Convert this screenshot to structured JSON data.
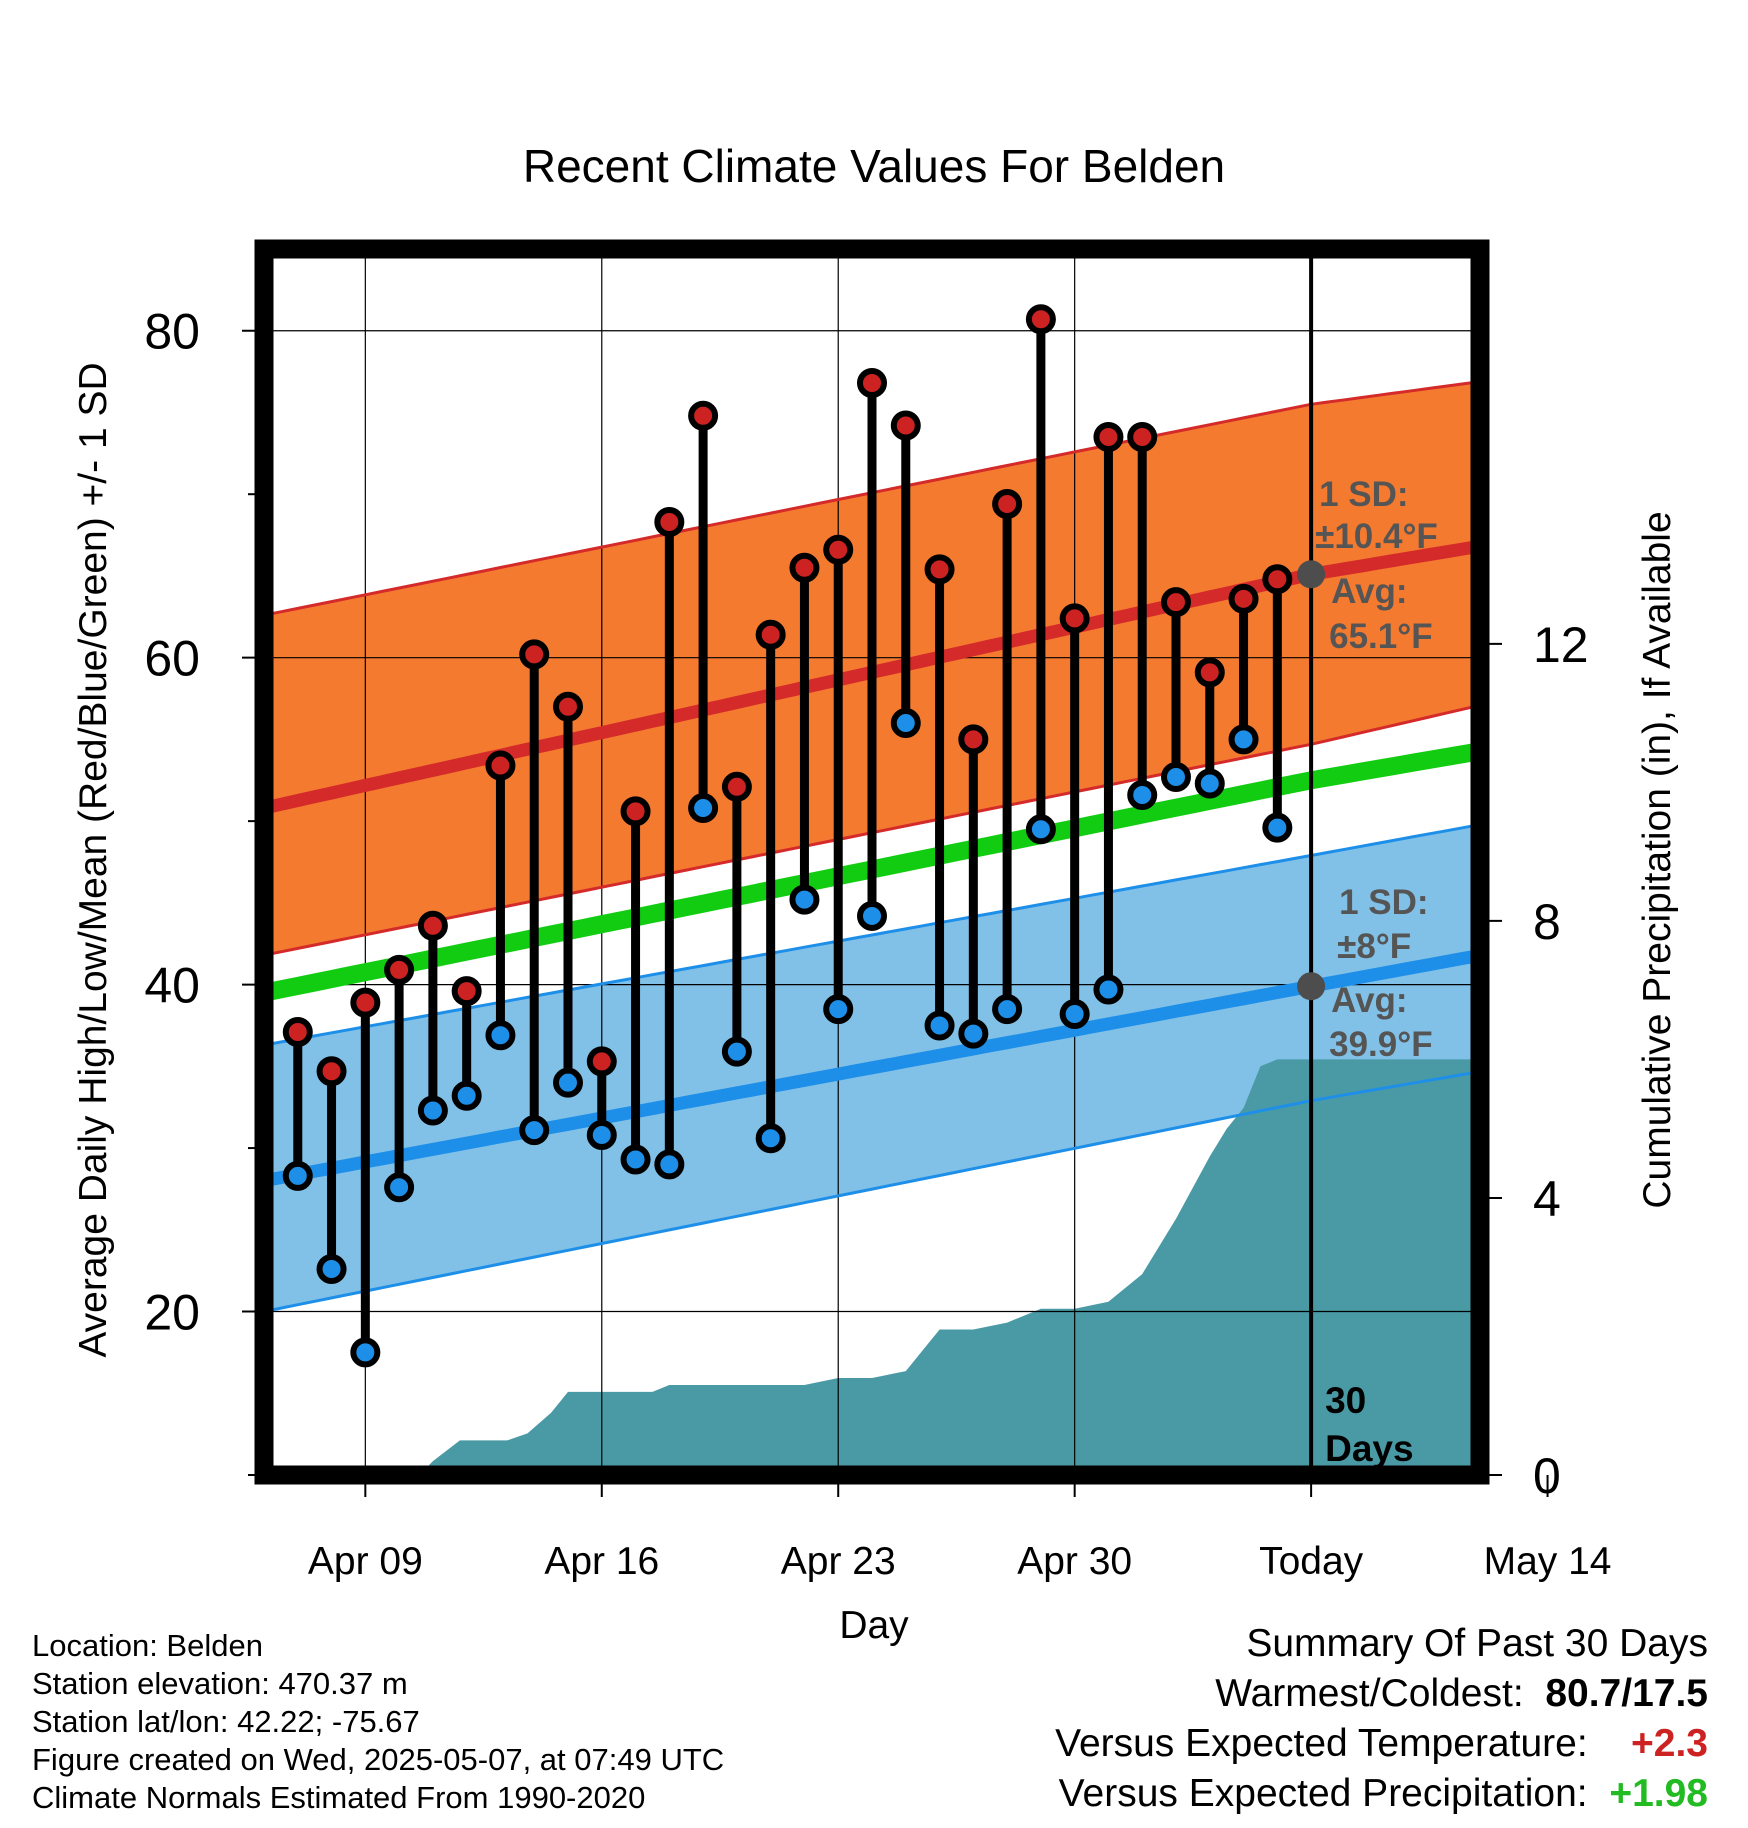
{
  "chart_data": {
    "type": "line",
    "title": "Recent Climate Values For Belden",
    "xlabel": "Day",
    "ylabel": "Average Daily High/Low/Mean (Red/Blue/Green) +/- 1 SD",
    "y2label": "Cumulative Precipitation (in), If Available",
    "xlim": [
      0,
      36
    ],
    "ylim": [
      10,
      85
    ],
    "y2lim": [
      0,
      17.7
    ],
    "x_ticks": [
      {
        "x": 3,
        "label": "Apr 09"
      },
      {
        "x": 10,
        "label": "Apr 16"
      },
      {
        "x": 17,
        "label": "Apr 23"
      },
      {
        "x": 24,
        "label": "Apr 30"
      },
      {
        "x": 31,
        "label": "Today"
      },
      {
        "x": 38,
        "label": "May 14"
      }
    ],
    "y_ticks": [
      20,
      40,
      60,
      80
    ],
    "y_minor_ticks": [
      10,
      30,
      50,
      70
    ],
    "y2_ticks": [
      0,
      4,
      8,
      12
    ],
    "grid": true,
    "today_x": 31,
    "today_label": [
      "30",
      "Days"
    ],
    "normals": {
      "x": [
        0,
        31,
        40
      ],
      "high_mean": [
        50.8,
        65.1,
        68.2
      ],
      "high_upper": [
        62.6,
        75.5,
        78.0
      ],
      "high_lower": [
        41.8,
        54.7,
        59.0
      ],
      "low_mean": [
        28.0,
        39.9,
        43.3
      ],
      "low_upper": [
        36.3,
        47.9,
        51.3
      ],
      "low_lower": [
        20.0,
        32.9,
        36.1
      ],
      "mean": [
        39.5,
        52.5,
        55.7
      ]
    },
    "high_annotation": {
      "sd_label": "1 SD:",
      "sd_value": "±10.4°F",
      "avg_label": "Avg:",
      "avg_value": "65.1°F",
      "avg": 65.1
    },
    "low_annotation": {
      "sd_label": "1 SD:",
      "sd_value": "±8°F",
      "avg_label": "Avg:",
      "avg_value": "39.9°F",
      "avg": 39.9
    },
    "series": [
      {
        "name": "High",
        "color": "#cc2222",
        "x": [
          1,
          2,
          3,
          4,
          5,
          6,
          7,
          8,
          9,
          10,
          11,
          12,
          13,
          14,
          15,
          16,
          17,
          18,
          19,
          20,
          21,
          22,
          23,
          24,
          25,
          26,
          27,
          28,
          29,
          30
        ],
        "values": [
          37.1,
          34.7,
          38.9,
          40.9,
          43.6,
          39.6,
          53.4,
          60.2,
          57.0,
          35.3,
          50.6,
          68.3,
          74.8,
          52.1,
          61.4,
          65.5,
          66.6,
          76.8,
          74.2,
          65.4,
          55.0,
          69.4,
          80.7,
          62.4,
          73.5,
          73.5,
          63.4,
          59.1,
          63.6,
          64.8
        ]
      },
      {
        "name": "Low",
        "color": "#1e8fe8",
        "x": [
          1,
          2,
          3,
          4,
          5,
          6,
          7,
          8,
          9,
          10,
          11,
          12,
          13,
          14,
          15,
          16,
          17,
          18,
          19,
          20,
          21,
          22,
          23,
          24,
          25,
          26,
          27,
          28,
          29,
          30
        ],
        "values": [
          28.3,
          22.6,
          17.5,
          27.6,
          32.3,
          33.2,
          36.9,
          31.1,
          34.0,
          30.8,
          29.3,
          29.0,
          50.8,
          35.9,
          30.6,
          45.2,
          38.5,
          44.2,
          56.0,
          37.5,
          37.0,
          38.5,
          49.5,
          38.2,
          39.7,
          51.6,
          52.7,
          52.3,
          55.0,
          49.6
        ]
      }
    ],
    "precip": {
      "x": [
        0,
        3,
        3.8,
        4.8,
        5,
        5.8,
        6,
        7.2,
        7.8,
        8.5,
        9,
        9.5,
        10,
        11.5,
        12,
        13,
        14,
        15,
        16,
        17,
        18,
        19,
        20,
        21,
        22,
        23,
        24,
        25,
        26,
        27,
        28,
        28.5,
        29,
        29.5,
        30,
        30.5,
        36
      ],
      "values": [
        0,
        0,
        0.1,
        0.1,
        0.2,
        0.5,
        0.5,
        0.5,
        0.6,
        0.9,
        1.2,
        1.2,
        1.2,
        1.2,
        1.3,
        1.3,
        1.3,
        1.3,
        1.3,
        1.4,
        1.4,
        1.5,
        2.1,
        2.1,
        2.2,
        2.4,
        2.4,
        2.5,
        2.9,
        3.7,
        4.6,
        5.0,
        5.3,
        5.9,
        6.0,
        6.0,
        6.0
      ],
      "color": "#4a9aa5"
    }
  },
  "meta": {
    "location": "Location: Belden",
    "elevation": "Station elevation: 470.37 m",
    "latlon": "Station lat/lon: 42.22; -75.67",
    "created": "Figure created on Wed, 2025-05-07, at 07:49 UTC",
    "normals_period": "Climate Normals Estimated From 1990-2020"
  },
  "summary": {
    "heading": "Summary Of Past 30 Days",
    "warm_cold_label": "Warmest/Coldest:",
    "warm_cold_value": "80.7/17.5",
    "temp_label": "Versus Expected Temperature:",
    "temp_value": "+2.3",
    "temp_color": "#cc2222",
    "precip_label": "Versus Expected Precipitation:",
    "precip_value": "+1.98",
    "precip_color": "#22bb22"
  }
}
